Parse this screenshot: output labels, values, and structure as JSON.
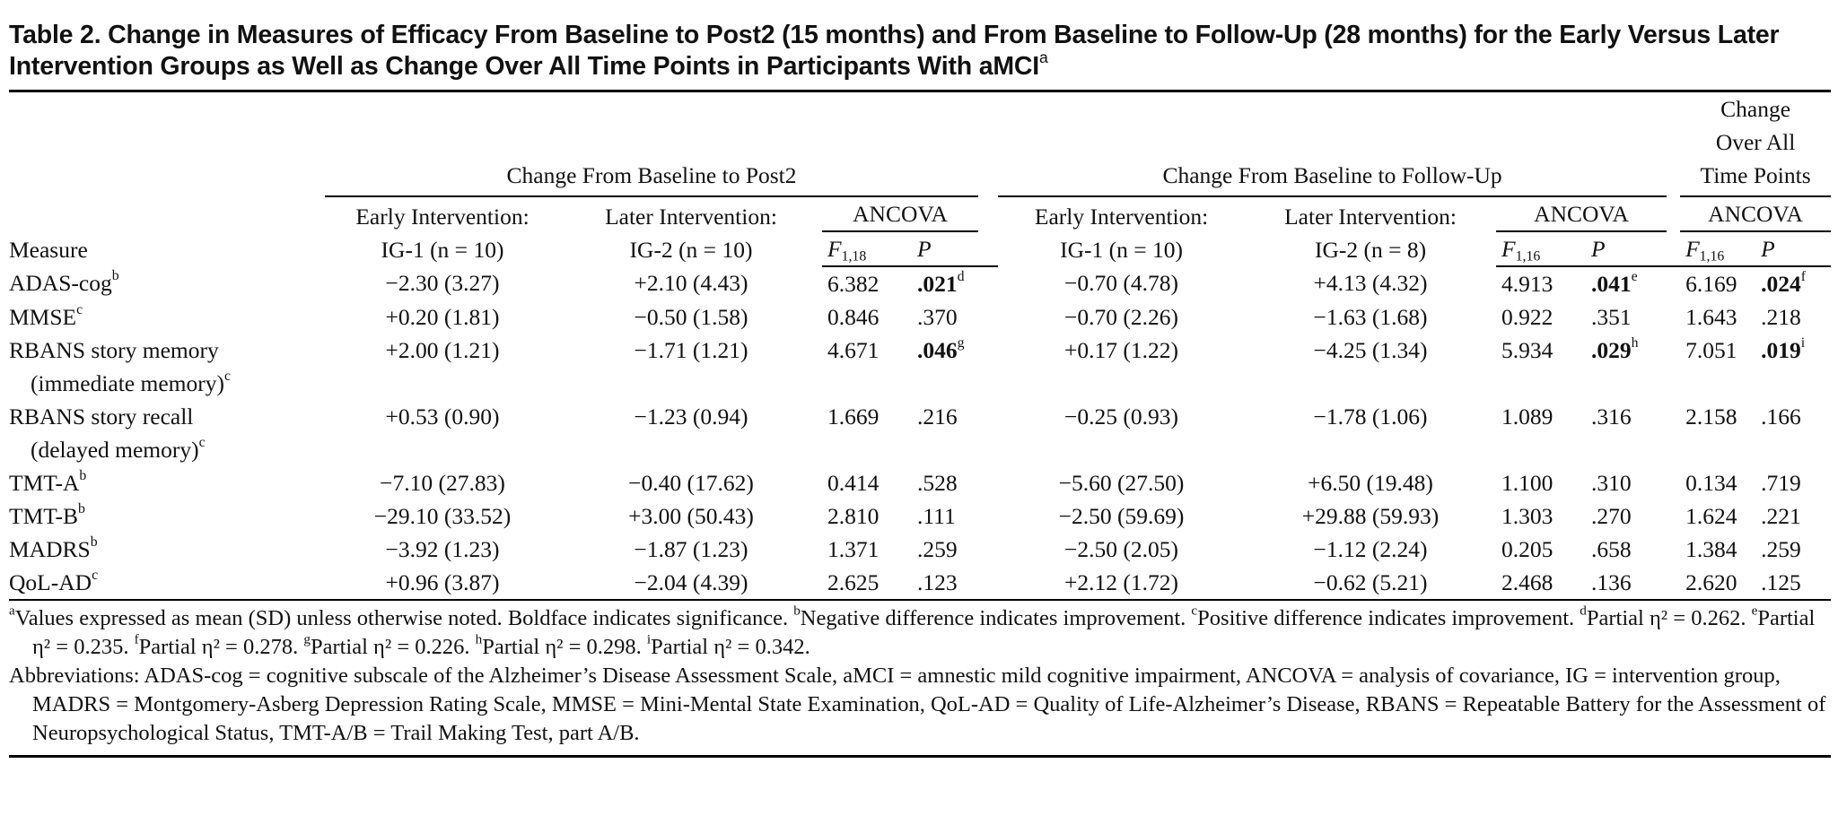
{
  "title": "Table 2. Change in Measures of Efficacy From Baseline to Post2 (15 months) and From Baseline to Follow-Up (28 months) for the Early Versus Later Intervention Groups as Well as Change Over All Time Points in Participants With aMCI",
  "title_sup": "a",
  "table": {
    "measure_header": "Measure",
    "groups": [
      {
        "label": [
          "Change From Baseline to Post2"
        ],
        "arms": [
          [
            "Early Intervention:",
            "IG-1 (n = 10)"
          ],
          [
            "Later Intervention:",
            "IG-2 (n = 10)"
          ]
        ],
        "test": {
          "label": "ANCOVA",
          "stat": {
            "text": "F",
            "sub": "1,18"
          },
          "p": "P"
        }
      },
      {
        "label": [
          "Change From Baseline to Follow-Up"
        ],
        "arms": [
          [
            "Early Intervention:",
            "IG-1 (n = 10)"
          ],
          [
            "Later Intervention:",
            "IG-2 (n = 8)"
          ]
        ],
        "test": {
          "label": "ANCOVA",
          "stat": {
            "text": "F",
            "sub": "1,16"
          },
          "p": "P"
        }
      },
      {
        "label": [
          "Change",
          "Over All",
          "Time Points"
        ],
        "arms": [],
        "test": {
          "label": "ANCOVA",
          "stat": {
            "text": "F",
            "sub": "1,16"
          },
          "p": "P"
        }
      }
    ],
    "rows": [
      {
        "measure": [
          "ADAS-cog"
        ],
        "sup": "b",
        "cells": [
          "−2.30 (3.27)",
          "+2.10 (4.43)",
          "6.382",
          {
            "text": ".021",
            "sup": "d",
            "bold": true
          },
          "−0.70 (4.78)",
          "+4.13 (4.32)",
          "4.913",
          {
            "text": ".041",
            "sup": "e",
            "bold": true
          },
          "6.169",
          {
            "text": ".024",
            "sup": "f",
            "bold": true
          }
        ]
      },
      {
        "measure": [
          "MMSE"
        ],
        "sup": "c",
        "cells": [
          "+0.20 (1.81)",
          "−0.50 (1.58)",
          "0.846",
          ".370",
          "−0.70 (2.26)",
          "−1.63 (1.68)",
          "0.922",
          ".351",
          "1.643",
          ".218"
        ]
      },
      {
        "measure": [
          "RBANS story memory",
          "(immediate memory)"
        ],
        "sup": "c",
        "cells": [
          "+2.00 (1.21)",
          "−1.71 (1.21)",
          "4.671",
          {
            "text": ".046",
            "sup": "g",
            "bold": true
          },
          "+0.17 (1.22)",
          "−4.25 (1.34)",
          "5.934",
          {
            "text": ".029",
            "sup": "h",
            "bold": true
          },
          "7.051",
          {
            "text": ".019",
            "sup": "i",
            "bold": true
          }
        ]
      },
      {
        "measure": [
          "RBANS story recall",
          "(delayed memory)"
        ],
        "sup": "c",
        "cells": [
          "+0.53 (0.90)",
          "−1.23 (0.94)",
          "1.669",
          ".216",
          "−0.25 (0.93)",
          "−1.78 (1.06)",
          "1.089",
          ".316",
          "2.158",
          ".166"
        ]
      },
      {
        "measure": [
          "TMT-A"
        ],
        "sup": "b",
        "cells": [
          "−7.10 (27.83)",
          "−0.40 (17.62)",
          "0.414",
          ".528",
          "−5.60 (27.50)",
          "+6.50 (19.48)",
          "1.100",
          ".310",
          "0.134",
          ".719"
        ]
      },
      {
        "measure": [
          "TMT-B"
        ],
        "sup": "b",
        "cells": [
          "−29.10 (33.52)",
          "+3.00 (50.43)",
          "2.810",
          ".111",
          "−2.50 (59.69)",
          "+29.88 (59.93)",
          "1.303",
          ".270",
          "1.624",
          ".221"
        ]
      },
      {
        "measure": [
          "MADRS"
        ],
        "sup": "b",
        "cells": [
          "−3.92 (1.23)",
          "−1.87 (1.23)",
          "1.371",
          ".259",
          "−2.50 (2.05)",
          "−1.12 (2.24)",
          "0.205",
          ".658",
          "1.384",
          ".259"
        ]
      },
      {
        "measure": [
          "QoL-AD"
        ],
        "sup": "c",
        "cells": [
          "+0.96 (3.87)",
          "−2.04 (4.39)",
          "2.625",
          ".123",
          "+2.12 (1.72)",
          "−0.62 (5.21)",
          "2.468",
          ".136",
          "2.620",
          ".125"
        ]
      }
    ]
  },
  "notes": [
    {
      "sup": "a",
      "text": "Values expressed as mean (SD) unless otherwise noted. Boldface indicates significance."
    },
    {
      "sup": "b",
      "text": "Negative difference indicates improvement."
    },
    {
      "sup": "c",
      "text": "Positive difference indicates improvement."
    },
    {
      "sup": "d",
      "text": "Partial η² = 0.262."
    },
    {
      "sup": "e",
      "text": "Partial η² = 0.235."
    },
    {
      "sup": "f",
      "text": "Partial η² = 0.278."
    },
    {
      "sup": "g",
      "text": "Partial η² = 0.226."
    },
    {
      "sup": "h",
      "text": "Partial η² = 0.298."
    },
    {
      "sup": "i",
      "text": "Partial η² = 0.342."
    }
  ],
  "abbreviations": "Abbreviations: ADAS-cog = cognitive subscale of the Alzheimer’s Disease Assessment Scale, aMCI = amnestic mild cognitive impairment, ANCOVA = analysis of covariance, IG = intervention group, MADRS = Montgomery-Asberg Depression Rating Scale, MMSE = Mini-Mental State Examination, QoL-AD = Quality of Life-Alzheimer’s Disease, RBANS = Repeatable Battery for the Assessment of Neuropsychological Status, TMT-A/B = Trail Making Test, part A/B."
}
